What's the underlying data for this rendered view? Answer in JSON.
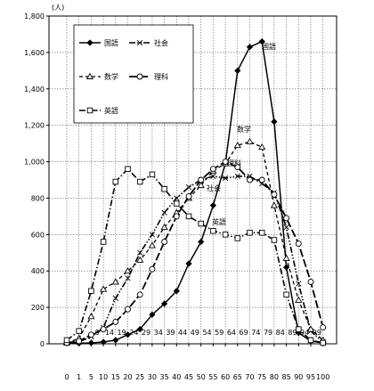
{
  "chart_data": {
    "type": "line",
    "title": "",
    "ylabel": "(人)",
    "xlabel": "",
    "ylim": [
      0,
      1800
    ],
    "y_ticks": [
      "0",
      "200",
      "400",
      "600",
      "800",
      "1,000",
      "1,200",
      "1,400",
      "1,600",
      "1,800"
    ],
    "x_tick_labels": [
      "0",
      "1",
      "5",
      "10",
      "15",
      "20",
      "25",
      "30",
      "35",
      "40",
      "45",
      "50",
      "55",
      "60",
      "65",
      "70",
      "75",
      "80",
      "85",
      "90",
      "95",
      "100"
    ],
    "x_inner_labels": [
      "9",
      "14",
      "19",
      "24",
      "29",
      "34",
      "39",
      "44",
      "49",
      "54",
      "59",
      "64",
      "69",
      "74",
      "79",
      "84",
      "89",
      "94",
      "99"
    ],
    "grid": true,
    "legend_position": "top-left",
    "series": [
      {
        "name": "国語",
        "label": "国語",
        "style": "solid",
        "marker": "diamond",
        "values": [
          5,
          3,
          5,
          10,
          20,
          50,
          80,
          160,
          220,
          290,
          440,
          560,
          760,
          990,
          1500,
          1630,
          1660,
          1220,
          420,
          60,
          15,
          5
        ]
      },
      {
        "name": "社会",
        "label": "社会",
        "style": "dashdot2",
        "marker": "x",
        "values": [
          5,
          10,
          40,
          90,
          250,
          360,
          500,
          600,
          720,
          800,
          860,
          900,
          920,
          910,
          920,
          920,
          880,
          830,
          640,
          330,
          70,
          10
        ]
      },
      {
        "name": "数学",
        "label": "数学",
        "style": "dash",
        "marker": "triangle",
        "values": [
          5,
          30,
          150,
          300,
          340,
          400,
          460,
          540,
          640,
          720,
          800,
          870,
          950,
          990,
          1090,
          1110,
          1080,
          760,
          470,
          240,
          80,
          20
        ]
      },
      {
        "name": "理科",
        "label": "理科",
        "style": "longdash",
        "marker": "circle",
        "values": [
          5,
          15,
          50,
          80,
          120,
          190,
          270,
          410,
          560,
          700,
          810,
          900,
          960,
          1000,
          970,
          900,
          900,
          820,
          690,
          550,
          340,
          90
        ]
      },
      {
        "name": "英語",
        "label": "英語",
        "style": "dashdot",
        "marker": "square",
        "values": [
          20,
          70,
          290,
          560,
          890,
          960,
          890,
          930,
          850,
          770,
          700,
          660,
          620,
          600,
          580,
          610,
          610,
          570,
          270,
          80,
          20,
          5
        ]
      }
    ]
  }
}
